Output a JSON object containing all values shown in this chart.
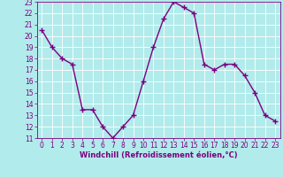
{
  "x": [
    0,
    1,
    2,
    3,
    4,
    5,
    6,
    7,
    8,
    9,
    10,
    11,
    12,
    13,
    14,
    15,
    16,
    17,
    18,
    19,
    20,
    21,
    22,
    23
  ],
  "y": [
    20.5,
    19.0,
    18.0,
    17.5,
    13.5,
    13.5,
    12.0,
    11.0,
    12.0,
    13.0,
    16.0,
    19.0,
    21.5,
    23.0,
    22.5,
    22.0,
    17.5,
    17.0,
    17.5,
    17.5,
    16.5,
    15.0,
    13.0,
    12.5
  ],
  "line_color": "#7b0080",
  "marker": "+",
  "marker_size": 4,
  "marker_lw": 1.0,
  "bg_color": "#b2ebeb",
  "grid_color": "#c8e8e8",
  "xlabel": "Windchill (Refroidissement éolien,°C)",
  "xlabel_color": "#7b0080",
  "tick_color": "#7b0080",
  "ylim": [
    11,
    23
  ],
  "xlim": [
    -0.5,
    23.5
  ],
  "yticks": [
    11,
    12,
    13,
    14,
    15,
    16,
    17,
    18,
    19,
    20,
    21,
    22,
    23
  ],
  "xticks": [
    0,
    1,
    2,
    3,
    4,
    5,
    6,
    7,
    8,
    9,
    10,
    11,
    12,
    13,
    14,
    15,
    16,
    17,
    18,
    19,
    20,
    21,
    22,
    23
  ],
  "line_width": 1.0,
  "tick_fontsize": 5.5,
  "xlabel_fontsize": 6.0
}
